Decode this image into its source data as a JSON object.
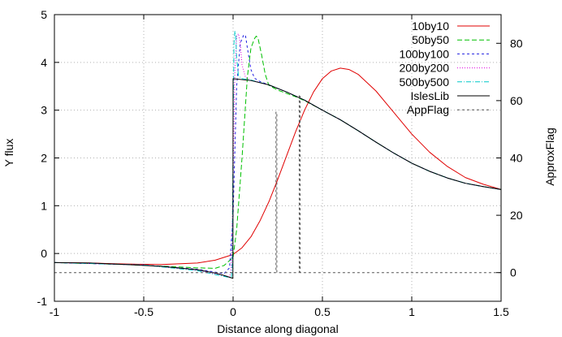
{
  "chart_data": {
    "type": "line",
    "title": "",
    "xlabel": "Distance along diagonal",
    "ylabel": "Y flux",
    "y2label": "ApproxFlag",
    "xlim": [
      -1,
      1.5
    ],
    "ylim": [
      -1,
      5
    ],
    "y2lim": [
      -10,
      90
    ],
    "xticks": [
      -1,
      -0.5,
      0,
      0.5,
      1,
      1.5
    ],
    "yticks": [
      -1,
      0,
      1,
      2,
      3,
      4,
      5
    ],
    "y2ticks": [
      0,
      20,
      40,
      60,
      80
    ],
    "grid": true,
    "legend_position": "top-right",
    "series": [
      {
        "name": "10by10",
        "color": "#e00000",
        "dash": "solid",
        "axis": "y",
        "x": [
          -1,
          -0.8,
          -0.6,
          -0.4,
          -0.2,
          -0.1,
          0,
          0.05,
          0.1,
          0.15,
          0.2,
          0.25,
          0.3,
          0.35,
          0.4,
          0.45,
          0.5,
          0.55,
          0.6,
          0.65,
          0.7,
          0.8,
          0.9,
          1.0,
          1.1,
          1.2,
          1.3,
          1.4,
          1.5
        ],
        "y": [
          -0.19,
          -0.2,
          -0.22,
          -0.23,
          -0.2,
          -0.14,
          -0.02,
          0.12,
          0.35,
          0.68,
          1.08,
          1.55,
          2.05,
          2.55,
          3.0,
          3.38,
          3.66,
          3.82,
          3.88,
          3.85,
          3.75,
          3.4,
          2.95,
          2.5,
          2.12,
          1.82,
          1.59,
          1.45,
          1.34
        ]
      },
      {
        "name": "50by50",
        "color": "#00c000",
        "dash": "6,3",
        "axis": "y",
        "x": [
          -1,
          -0.6,
          -0.2,
          -0.1,
          -0.05,
          0,
          0.02,
          0.05,
          0.08,
          0.1,
          0.12,
          0.13,
          0.14,
          0.16,
          0.18,
          0.2,
          0.25,
          0.3,
          0.35,
          0.4,
          0.5,
          0.6,
          0.7,
          0.8,
          0.9,
          1.0,
          1.1,
          1.2,
          1.3,
          1.4,
          1.5
        ],
        "y": [
          -0.19,
          -0.23,
          -0.3,
          -0.31,
          -0.25,
          -0.08,
          0.5,
          2.0,
          3.7,
          4.3,
          4.5,
          4.55,
          4.5,
          4.15,
          3.75,
          3.52,
          3.42,
          3.35,
          3.28,
          3.2,
          3.0,
          2.8,
          2.57,
          2.33,
          2.1,
          1.89,
          1.72,
          1.58,
          1.47,
          1.4,
          1.34
        ]
      },
      {
        "name": "100by100",
        "color": "#2020e0",
        "dash": "3,3",
        "axis": "y",
        "x": [
          -1,
          -0.5,
          -0.2,
          -0.1,
          -0.05,
          -0.02,
          0,
          0.02,
          0.04,
          0.06,
          0.07,
          0.08,
          0.1,
          0.12,
          0.15,
          0.2,
          0.3,
          0.4,
          0.5,
          0.6,
          0.7,
          0.8,
          0.9,
          1.0,
          1.1,
          1.2,
          1.3,
          1.4,
          1.5
        ],
        "y": [
          -0.19,
          -0.24,
          -0.33,
          -0.39,
          -0.42,
          -0.3,
          0.8,
          3.5,
          4.4,
          4.58,
          4.55,
          4.3,
          3.85,
          3.67,
          3.6,
          3.53,
          3.38,
          3.21,
          3.0,
          2.8,
          2.57,
          2.33,
          2.1,
          1.89,
          1.72,
          1.58,
          1.47,
          1.4,
          1.34
        ]
      },
      {
        "name": "200by200",
        "color": "#e000e0",
        "dash": "1,2",
        "axis": "y",
        "x": [
          -1,
          -0.5,
          -0.2,
          -0.05,
          -0.02,
          -0.01,
          0,
          0.01,
          0.02,
          0.03,
          0.04,
          0.05,
          0.07,
          0.1,
          0.2,
          0.3,
          0.4,
          0.5,
          0.6,
          0.7,
          0.8,
          0.9,
          1.0,
          1.1,
          1.2,
          1.3,
          1.4,
          1.5
        ],
        "y": [
          -0.19,
          -0.24,
          -0.35,
          -0.46,
          -0.49,
          -0.3,
          1.5,
          3.8,
          4.55,
          4.6,
          4.4,
          3.95,
          3.68,
          3.63,
          3.53,
          3.38,
          3.21,
          3.0,
          2.8,
          2.57,
          2.33,
          2.1,
          1.89,
          1.72,
          1.58,
          1.47,
          1.4,
          1.34
        ]
      },
      {
        "name": "500by500",
        "color": "#00c8c8",
        "dash": "6,2,1,2",
        "axis": "y",
        "x": [
          -1,
          -0.5,
          -0.2,
          -0.05,
          -0.01,
          -0.005,
          0,
          0.005,
          0.01,
          0.015,
          0.02,
          0.03,
          0.05,
          0.1,
          0.2,
          0.3,
          0.4,
          0.5,
          0.6,
          0.7,
          0.8,
          0.9,
          1.0,
          1.1,
          1.2,
          1.3,
          1.4,
          1.5
        ],
        "y": [
          -0.19,
          -0.24,
          -0.36,
          -0.48,
          -0.51,
          -0.3,
          2.5,
          4.4,
          4.65,
          4.55,
          4.1,
          3.72,
          3.66,
          3.63,
          3.53,
          3.38,
          3.21,
          3.0,
          2.8,
          2.57,
          2.33,
          2.1,
          1.89,
          1.72,
          1.58,
          1.47,
          1.4,
          1.34
        ]
      },
      {
        "name": "IslesLib",
        "color": "#000000",
        "dash": "solid",
        "axis": "y",
        "x": [
          -1,
          -0.8,
          -0.6,
          -0.4,
          -0.2,
          -0.1,
          -0.05,
          -0.001,
          0,
          0.1,
          0.2,
          0.3,
          0.4,
          0.5,
          0.6,
          0.7,
          0.8,
          0.9,
          1.0,
          1.1,
          1.2,
          1.3,
          1.4,
          1.5
        ],
        "y": [
          -0.19,
          -0.2,
          -0.23,
          -0.27,
          -0.34,
          -0.41,
          -0.46,
          -0.52,
          3.66,
          3.62,
          3.53,
          3.38,
          3.21,
          3.0,
          2.8,
          2.57,
          2.33,
          2.1,
          1.89,
          1.72,
          1.58,
          1.47,
          1.4,
          1.34
        ]
      },
      {
        "name": "AppFlag",
        "color": "#555555",
        "dash": "3,3",
        "axis": "y2",
        "x": [
          -1,
          0.24,
          0.24,
          0.245,
          0.245,
          0.37,
          0.37,
          0.375,
          0.375,
          1.5
        ],
        "y": [
          0,
          0,
          56,
          56,
          0,
          0,
          62,
          62,
          0,
          0
        ]
      }
    ]
  }
}
